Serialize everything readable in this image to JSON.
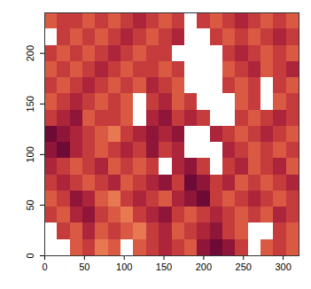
{
  "chart_data": {
    "type": "heatmap",
    "xlim": [
      0,
      320
    ],
    "ylim": [
      0,
      240
    ],
    "xticks": [
      0,
      50,
      100,
      150,
      200,
      250,
      300
    ],
    "yticks": [
      0,
      50,
      100,
      150,
      200
    ],
    "xbins": [
      0,
      16,
      32,
      48,
      64,
      80,
      96,
      112,
      128,
      144,
      160,
      176,
      192,
      208,
      224,
      240,
      256,
      272,
      288,
      304,
      320
    ],
    "ybins": [
      0,
      16,
      32,
      48,
      64,
      80,
      96,
      112,
      128,
      144,
      160,
      176,
      192,
      208,
      224,
      240
    ],
    "zlim": [
      0,
      9
    ],
    "z": [
      [
        null,
        null,
        5,
        6,
        4,
        5,
        null,
        5,
        6,
        7,
        6,
        5,
        8,
        9,
        8,
        6,
        null,
        5,
        6,
        5
      ],
      [
        null,
        6,
        5,
        7,
        5,
        6,
        5,
        4,
        6,
        7,
        5,
        6,
        7,
        8,
        6,
        5,
        null,
        null,
        6,
        5
      ],
      [
        6,
        5,
        7,
        8,
        6,
        5,
        4,
        6,
        7,
        8,
        6,
        5,
        6,
        7,
        6,
        5,
        6,
        5,
        7,
        6
      ],
      [
        5,
        6,
        8,
        7,
        5,
        4,
        6,
        7,
        6,
        5,
        7,
        8,
        9,
        6,
        5,
        6,
        7,
        6,
        5,
        6
      ],
      [
        6,
        7,
        6,
        5,
        6,
        7,
        5,
        6,
        7,
        8,
        6,
        9,
        8,
        6,
        7,
        5,
        6,
        5,
        6,
        7
      ],
      [
        7,
        6,
        5,
        6,
        7,
        5,
        6,
        5,
        6,
        null,
        7,
        8,
        6,
        null,
        6,
        7,
        5,
        6,
        7,
        5
      ],
      [
        8,
        9,
        7,
        6,
        5,
        6,
        7,
        6,
        8,
        6,
        7,
        null,
        null,
        null,
        7,
        6,
        5,
        6,
        5,
        6
      ],
      [
        9,
        8,
        7,
        6,
        5,
        4,
        6,
        7,
        8,
        7,
        8,
        null,
        null,
        7,
        6,
        5,
        6,
        7,
        6,
        5
      ],
      [
        6,
        7,
        8,
        5,
        6,
        6,
        5,
        null,
        7,
        8,
        6,
        7,
        6,
        null,
        null,
        6,
        5,
        6,
        7,
        6
      ],
      [
        5,
        6,
        7,
        6,
        5,
        6,
        5,
        null,
        6,
        7,
        5,
        6,
        null,
        null,
        null,
        5,
        6,
        null,
        5,
        6
      ],
      [
        6,
        5,
        6,
        7,
        6,
        5,
        6,
        5,
        7,
        6,
        5,
        null,
        null,
        null,
        6,
        5,
        6,
        null,
        6,
        5
      ],
      [
        5,
        6,
        5,
        6,
        7,
        6,
        5,
        6,
        6,
        5,
        6,
        null,
        null,
        null,
        5,
        6,
        7,
        5,
        6,
        7
      ],
      [
        6,
        5,
        6,
        5,
        6,
        7,
        6,
        5,
        6,
        6,
        null,
        null,
        null,
        null,
        6,
        7,
        6,
        5,
        6,
        5
      ],
      [
        null,
        6,
        5,
        6,
        5,
        6,
        7,
        6,
        5,
        6,
        7,
        null,
        null,
        6,
        5,
        6,
        5,
        6,
        7,
        6
      ],
      [
        5,
        6,
        6,
        5,
        6,
        5,
        6,
        7,
        6,
        5,
        6,
        null,
        6,
        5,
        6,
        7,
        6,
        5,
        6,
        5
      ]
    ]
  }
}
